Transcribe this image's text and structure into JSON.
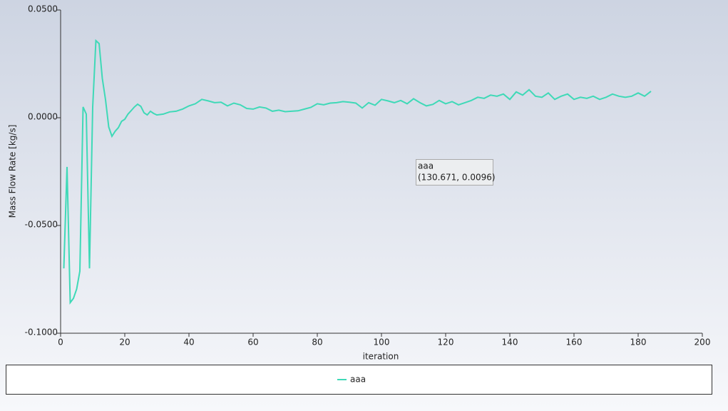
{
  "chart_data": {
    "type": "line",
    "xlabel": "iteration",
    "ylabel": "Mass Flow Rate [kg/s]",
    "xlim": [
      0,
      200
    ],
    "xticks": [
      0,
      20,
      40,
      60,
      80,
      100,
      120,
      140,
      160,
      180,
      200
    ],
    "ylim": [
      -0.1,
      0.05
    ],
    "yticks": [
      {
        "value": -0.1,
        "label": "-0.1000"
      },
      {
        "value": -0.05,
        "label": "-0.0500"
      },
      {
        "value": 0,
        "label": "0.0000"
      },
      {
        "value": 0.05,
        "label": "0.0500"
      }
    ],
    "legend": "bottom",
    "tooltip": {
      "name": "aaa",
      "text": "(130.671, 0.0096)"
    },
    "series": [
      {
        "name": "aaa",
        "color": "#3fd9b7",
        "x": [
          1,
          2,
          3,
          4,
          5,
          6,
          7,
          8,
          9,
          10,
          11,
          12,
          13,
          14,
          15,
          16,
          17,
          18,
          19,
          20,
          21,
          22,
          23,
          24,
          25,
          26,
          27,
          28,
          29,
          30,
          32,
          34,
          36,
          38,
          40,
          42,
          44,
          46,
          48,
          50,
          52,
          54,
          56,
          58,
          60,
          62,
          64,
          66,
          68,
          70,
          72,
          74,
          76,
          78,
          80,
          82,
          84,
          86,
          88,
          90,
          92,
          94,
          96,
          98,
          100,
          102,
          104,
          106,
          108,
          110,
          112,
          114,
          116,
          118,
          120,
          122,
          124,
          126,
          128,
          130,
          132,
          134,
          136,
          138,
          140,
          142,
          144,
          146,
          148,
          150,
          152,
          154,
          156,
          158,
          160,
          162,
          164,
          166,
          168,
          170,
          172,
          174,
          176,
          178,
          180,
          182,
          184
        ],
        "values": [
          -0.0699,
          -0.0228,
          -0.0858,
          -0.0838,
          -0.0795,
          -0.0712,
          0.005,
          0.0017,
          -0.0699,
          0.005,
          0.0358,
          0.0344,
          0.0182,
          0.0083,
          -0.0043,
          -0.0086,
          -0.0063,
          -0.0046,
          -0.0017,
          -0.0007,
          0.0017,
          0.0033,
          0.005,
          0.0063,
          0.0053,
          0.0023,
          0.0013,
          0.003,
          0.002,
          0.0013,
          0.0017,
          0.0027,
          0.003,
          0.004,
          0.0055,
          0.0065,
          0.0085,
          0.0078,
          0.007,
          0.0072,
          0.0055,
          0.0068,
          0.006,
          0.0043,
          0.004,
          0.005,
          0.0045,
          0.003,
          0.0035,
          0.0028,
          0.003,
          0.0032,
          0.004,
          0.0048,
          0.0065,
          0.006,
          0.0068,
          0.007,
          0.0075,
          0.0072,
          0.0068,
          0.0045,
          0.007,
          0.0058,
          0.0085,
          0.0078,
          0.007,
          0.008,
          0.0065,
          0.0088,
          0.007,
          0.0055,
          0.0062,
          0.008,
          0.0065,
          0.0075,
          0.006,
          0.007,
          0.008,
          0.0095,
          0.009,
          0.0105,
          0.01,
          0.011,
          0.0085,
          0.012,
          0.0105,
          0.013,
          0.01,
          0.0095,
          0.0115,
          0.0085,
          0.01,
          0.011,
          0.0085,
          0.0095,
          0.009,
          0.01,
          0.0085,
          0.0095,
          0.011,
          0.01,
          0.0095,
          0.01,
          0.0115,
          0.01,
          0.0123
        ]
      }
    ]
  }
}
